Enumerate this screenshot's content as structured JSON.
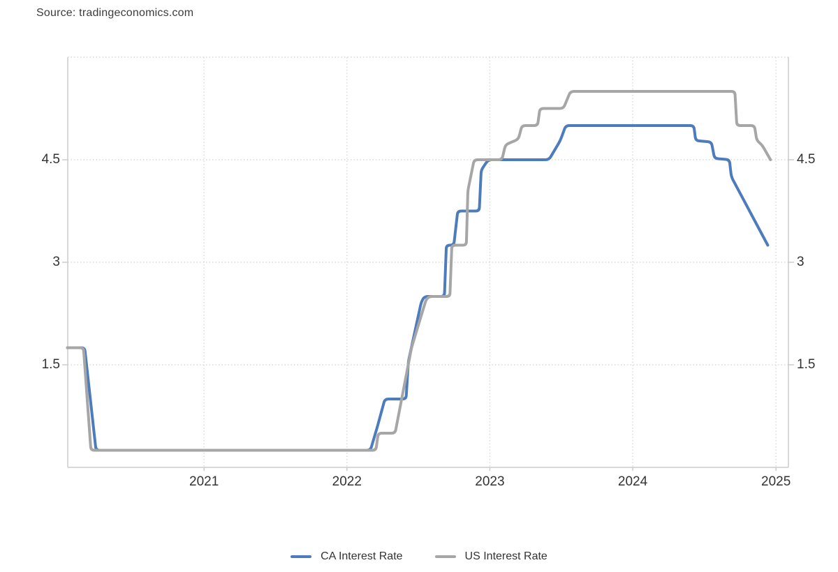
{
  "source_label": "Source: tradingeconomics.com",
  "colors": {
    "ca_line": "#4d7cbd",
    "us_line": "#a6a6a6",
    "axis": "#cccccc",
    "grid": "#d9d9d9",
    "text": "#333333"
  },
  "legend": {
    "position": "bottom",
    "items": [
      {
        "label": "CA Interest Rate",
        "color": "#4d7cbd"
      },
      {
        "label": "US Interest Rate",
        "color": "#a6a6a6"
      }
    ]
  },
  "chart_data": {
    "type": "line",
    "title": "",
    "xlabel": "",
    "ylabel": "",
    "x_axis": {
      "domain": [
        "2020-01-18",
        "2025-02-01"
      ],
      "ticks": [
        {
          "label": "2021",
          "date": "2021-01-01"
        },
        {
          "label": "2022",
          "date": "2022-01-01"
        },
        {
          "label": "2023",
          "date": "2023-01-01"
        },
        {
          "label": "2024",
          "date": "2024-01-01"
        },
        {
          "label": "2025",
          "date": "2025-01-01"
        }
      ]
    },
    "y_axis": {
      "range": [
        0,
        6
      ],
      "ticks": [
        {
          "label": "1.5",
          "value": 1.5
        },
        {
          "label": "3",
          "value": 3
        },
        {
          "label": "4.5",
          "value": 4.5
        }
      ],
      "grid_values": [
        1.5,
        3,
        4.5,
        6
      ]
    },
    "grid": true,
    "legend_position": "bottom",
    "series": [
      {
        "name": "CA Interest Rate",
        "color": "#4d7cbd",
        "points": [
          [
            "2020-01-18",
            1.75
          ],
          [
            "2020-03-02",
            1.75
          ],
          [
            "2020-03-31",
            0.25
          ],
          [
            "2022-03-02",
            0.25
          ],
          [
            "2022-03-20",
            0.6
          ],
          [
            "2022-04-08",
            1.0
          ],
          [
            "2022-06-01",
            1.0
          ],
          [
            "2022-06-07",
            1.55
          ],
          [
            "2022-07-10",
            2.42
          ],
          [
            "2022-07-18",
            2.5
          ],
          [
            "2022-09-07",
            2.5
          ],
          [
            "2022-09-12",
            3.25
          ],
          [
            "2022-10-01",
            3.25
          ],
          [
            "2022-10-11",
            3.75
          ],
          [
            "2022-12-05",
            3.75
          ],
          [
            "2022-12-10",
            4.35
          ],
          [
            "2022-12-28",
            4.5
          ],
          [
            "2023-06-01",
            4.5
          ],
          [
            "2023-06-30",
            4.78
          ],
          [
            "2023-07-14",
            5.0
          ],
          [
            "2024-06-05",
            5.0
          ],
          [
            "2024-06-10",
            4.78
          ],
          [
            "2024-07-20",
            4.76
          ],
          [
            "2024-07-28",
            4.52
          ],
          [
            "2024-09-04",
            4.5
          ],
          [
            "2024-09-09",
            4.25
          ],
          [
            "2024-12-11",
            3.25
          ]
        ]
      },
      {
        "name": "US Interest Rate",
        "color": "#a6a6a6",
        "points": [
          [
            "2020-01-18",
            1.75
          ],
          [
            "2020-02-28",
            1.75
          ],
          [
            "2020-03-18",
            0.25
          ],
          [
            "2022-03-16",
            0.25
          ],
          [
            "2022-03-22",
            0.5
          ],
          [
            "2022-05-04",
            0.5
          ],
          [
            "2022-06-15",
            1.75
          ],
          [
            "2022-07-22",
            2.45
          ],
          [
            "2022-07-30",
            2.5
          ],
          [
            "2022-09-21",
            2.5
          ],
          [
            "2022-09-26",
            3.25
          ],
          [
            "2022-11-02",
            3.25
          ],
          [
            "2022-11-06",
            4.05
          ],
          [
            "2022-11-22",
            4.5
          ],
          [
            "2023-02-01",
            4.5
          ],
          [
            "2023-02-10",
            4.72
          ],
          [
            "2023-03-15",
            4.8
          ],
          [
            "2023-03-24",
            5.0
          ],
          [
            "2023-05-03",
            5.0
          ],
          [
            "2023-05-09",
            5.25
          ],
          [
            "2023-07-08",
            5.25
          ],
          [
            "2023-07-26",
            5.5
          ],
          [
            "2024-09-18",
            5.5
          ],
          [
            "2024-09-23",
            5.0
          ],
          [
            "2024-11-07",
            5.0
          ],
          [
            "2024-11-13",
            4.78
          ],
          [
            "2024-11-26",
            4.72
          ],
          [
            "2024-12-18",
            4.5
          ]
        ]
      }
    ]
  }
}
